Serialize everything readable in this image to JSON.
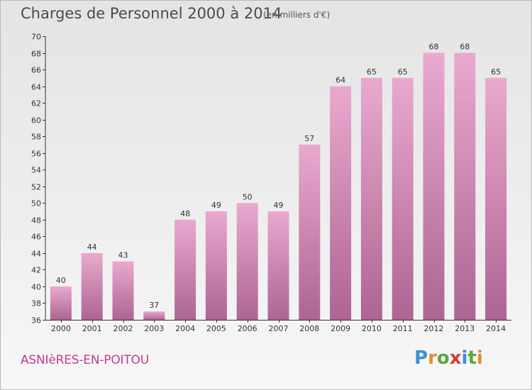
{
  "header": {
    "title": "Charges de Personnel 2000 à 2014",
    "unit_note": "(en milliers d'€)"
  },
  "footer": {
    "location": "ASNIèRES-EN-POITOU",
    "logo_text": "Proxiti"
  },
  "colors": {
    "bar_top": "#e9a9cf",
    "bar_bottom": "#ad6591",
    "location_text": "#c43c8e",
    "logo_letters": [
      "#3a8fd6",
      "#e68a2e",
      "#5aa83c",
      "#d63b3b",
      "#3a8fd6",
      "#5aa83c",
      "#e68a2e"
    ]
  },
  "chart_data": {
    "type": "bar",
    "title": "Charges de Personnel 2000 à 2014",
    "subtitle": "(en milliers d'€)",
    "xlabel": "",
    "ylabel": "",
    "categories": [
      "2000",
      "2001",
      "2002",
      "2003",
      "2004",
      "2005",
      "2006",
      "2007",
      "2008",
      "2009",
      "2010",
      "2011",
      "2012",
      "2013",
      "2014"
    ],
    "values": [
      40,
      44,
      43,
      37,
      48,
      49,
      50,
      49,
      57,
      64,
      65,
      65,
      68,
      68,
      65
    ],
    "ylim": [
      36,
      70
    ],
    "y_ticks": [
      36,
      38,
      40,
      42,
      44,
      46,
      48,
      50,
      52,
      54,
      56,
      58,
      60,
      62,
      64,
      66,
      68,
      70
    ],
    "grid": false,
    "legend": "none",
    "data_labels": true
  }
}
